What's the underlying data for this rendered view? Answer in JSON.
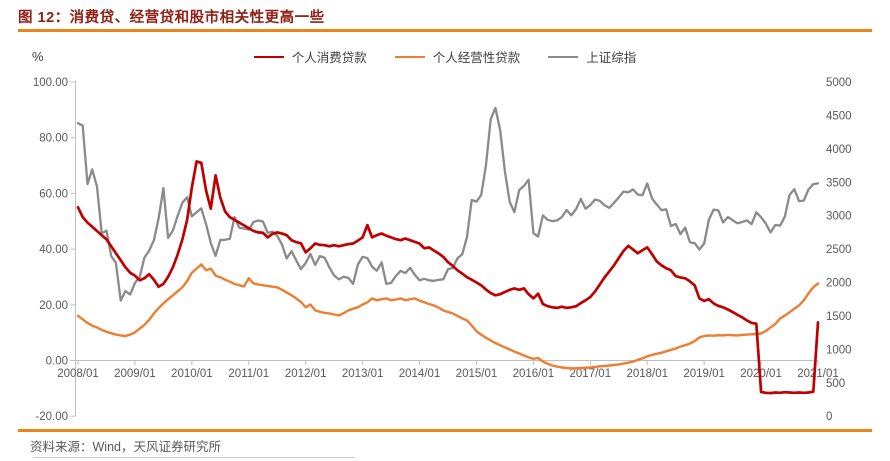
{
  "header": {
    "title": "图 12：消费贷、经营贷和股市相关性更高一些"
  },
  "footer": {
    "source": "资料来源：Wind，天风证券研究所"
  },
  "colors": {
    "title_text": "#8e2016",
    "accent_rule": "#e8861c",
    "axis_text": "#595959",
    "axis_line": "#bfbfbf",
    "legend_text": "#3d3d3d",
    "consumer_loans": "#c00000",
    "business_loans": "#ed7d31",
    "sse_index": "#8a8a8a"
  },
  "chart_data": {
    "type": "line",
    "title": "图 12：消费贷、经营贷和股市相关性更高一些",
    "unit_label": "%",
    "grid": "off",
    "legend_position": "top",
    "x_start": "2008/01",
    "x_end": "2021/01",
    "x_frequency": "monthly",
    "x_tick_labels": [
      "2008/01",
      "2009/01",
      "2010/01",
      "2011/01",
      "2012/01",
      "2013/01",
      "2014/01",
      "2015/01",
      "2016/01",
      "2017/01",
      "2018/01",
      "2019/01",
      "2020/01",
      "2021/01"
    ],
    "left_axis": {
      "label": "%",
      "min": -20,
      "max": 100,
      "step": 20,
      "tick_labels": [
        "100.00",
        "80.00",
        "60.00",
        "40.00",
        "20.00",
        "0.00",
        "-20.00"
      ]
    },
    "right_axis": {
      "min": 0,
      "max": 5000,
      "step": 500,
      "tick_labels": [
        "5000",
        "4500",
        "4000",
        "3500",
        "3000",
        "2500",
        "2000",
        "1500",
        "1000",
        "500",
        "0"
      ]
    },
    "series": [
      {
        "name": "个人消费贷款",
        "axis": "left",
        "color_key": "consumer_loans",
        "values": [
          55,
          51.5,
          49.5,
          48,
          46.5,
          45,
          43.5,
          41,
          38.5,
          36,
          33.5,
          31.5,
          30.5,
          28.8,
          29.5,
          31,
          29,
          26.5,
          27.5,
          30,
          33.5,
          38,
          43.5,
          50.5,
          62,
          71.5,
          71,
          61,
          54.5,
          66.5,
          58.5,
          53.5,
          51.5,
          50.5,
          49.5,
          48.5,
          47.5,
          46.5,
          46,
          45.8,
          44.2,
          45.5,
          46,
          45.6,
          45,
          43.2,
          42.5,
          42.1,
          38.8,
          40.3,
          42,
          41.5,
          41.4,
          41,
          41.4,
          41,
          41.4,
          41.8,
          42,
          43,
          44.2,
          48.6,
          44.2,
          45,
          45.6,
          44.8,
          44.2,
          43.6,
          43.2,
          43.8,
          43.2,
          42.6,
          42,
          40.3,
          40.6,
          39.5,
          38.5,
          37.2,
          35.3,
          34,
          32.4,
          31.2,
          29.9,
          29,
          28,
          27,
          25.5,
          24.2,
          23.4,
          23.8,
          24.6,
          25.4,
          25.9,
          25.4,
          25.9,
          23.8,
          22.3,
          24,
          20.3,
          19.5,
          19.1,
          18.9,
          19.3,
          18.9,
          19.1,
          19.5,
          20.6,
          21.6,
          22.8,
          24.8,
          27.3,
          29.8,
          32,
          34.2,
          36.8,
          39.3,
          41.2,
          39.9,
          38.5,
          39.6,
          40.6,
          38.2,
          35.6,
          34.2,
          33.1,
          32.4,
          30.3,
          29.8,
          29.5,
          28.4,
          27,
          22.3,
          21.4,
          22,
          20.5,
          19.6,
          19.1,
          18.3,
          17.4,
          16.4,
          15.5,
          14.4,
          13.5,
          13.2,
          -11.3,
          -11.6,
          -11.7,
          -11.5,
          -11.6,
          -11.4,
          -11.5,
          -11.6,
          -11.5,
          -11.6,
          -11.5,
          -11.2,
          13.7
        ]
      },
      {
        "name": "个人经营性贷款",
        "axis": "left",
        "color_key": "business_loans",
        "values": [
          16,
          14.8,
          13.5,
          12.5,
          11.9,
          11,
          10.3,
          9.8,
          9.3,
          9,
          8.8,
          9.3,
          10.1,
          11.5,
          12.8,
          14.6,
          16.9,
          18.8,
          20.5,
          22,
          23.4,
          24.8,
          26.3,
          28.5,
          31.5,
          33,
          34.5,
          32.4,
          33,
          30.5,
          29.9,
          29,
          28.3,
          27.5,
          27,
          26.6,
          29.5,
          27.7,
          27.3,
          27,
          26.8,
          26.5,
          26.3,
          25.4,
          24.4,
          23.4,
          22.3,
          21,
          19.1,
          20.1,
          18,
          17.5,
          17.1,
          16.9,
          16.5,
          16.2,
          17,
          18,
          18.6,
          19.1,
          20.1,
          20.9,
          22.3,
          21.6,
          22,
          22.3,
          21.6,
          21.9,
          22.3,
          21.6,
          22,
          22.3,
          21.5,
          20.9,
          20.3,
          19.8,
          19,
          18,
          17.4,
          16.9,
          16,
          15.1,
          14.4,
          12.6,
          10.5,
          9.3,
          8.2,
          7.2,
          6.3,
          5.5,
          4.7,
          4,
          3.2,
          2.5,
          1.8,
          1.1,
          0.6,
          0.9,
          -0.4,
          -1.2,
          -1.8,
          -2.2,
          -2.5,
          -2.7,
          -2.8,
          -2.8,
          -2.7,
          -2.6,
          -2.5,
          -2.3,
          -2.1,
          -2,
          -1.8,
          -1.6,
          -1.4,
          -1.1,
          -0.8,
          -0.4,
          0.2,
          0.8,
          1.5,
          2,
          2.4,
          2.8,
          3.3,
          3.8,
          4.3,
          5,
          5.5,
          6.1,
          7,
          8.3,
          8.8,
          9,
          8.9,
          9.1,
          9,
          9.2,
          9.1,
          9,
          9.2,
          9.3,
          9.4,
          9.5,
          9.7,
          10.6,
          11.9,
          13.1,
          15.1,
          16.1,
          17.3,
          18.6,
          19.8,
          21.6,
          24.1,
          26.3,
          27.7
        ]
      },
      {
        "name": "上证综指",
        "axis": "right",
        "color_key": "sse_index",
        "values": [
          4383,
          4348,
          3472,
          3693,
          3433,
          2736,
          2776,
          2397,
          2294,
          1729,
          1871,
          1821,
          1991,
          2083,
          2373,
          2478,
          2633,
          2959,
          3412,
          2668,
          2779,
          2995,
          3195,
          3277,
          2989,
          3052,
          3109,
          2871,
          2592,
          2398,
          2638,
          2639,
          2655,
          2979,
          2820,
          2808,
          2790,
          2905,
          2928,
          2911,
          2743,
          2762,
          2701,
          2567,
          2359,
          2468,
          2333,
          2199,
          2292,
          2428,
          2262,
          2396,
          2372,
          2225,
          2103,
          2047,
          2086,
          2068,
          1980,
          2269,
          2385,
          2365,
          2236,
          2177,
          2301,
          1979,
          1994,
          2098,
          2175,
          2141,
          2220,
          2116,
          2033,
          2056,
          2033,
          2026,
          2039,
          2048,
          2201,
          2217,
          2364,
          2420,
          2683,
          3235,
          3210,
          3310,
          3748,
          4442,
          4612,
          4277,
          3664,
          3206,
          3053,
          3383,
          3445,
          3539,
          2738,
          2688,
          3004,
          2938,
          2917,
          2930,
          2979,
          3085,
          3005,
          3100,
          3250,
          3104,
          3159,
          3242,
          3223,
          3155,
          3117,
          3192,
          3273,
          3361,
          3349,
          3393,
          3317,
          3307,
          3481,
          3259,
          3169,
          3082,
          3095,
          2847,
          2876,
          2725,
          2821,
          2603,
          2588,
          2494,
          2585,
          2941,
          3091,
          3078,
          2899,
          2979,
          2933,
          2886,
          2905,
          2929,
          2872,
          3050,
          2977,
          2880,
          2750,
          2860,
          2852,
          2985,
          3310,
          3396,
          3218,
          3225,
          3392,
          3473,
          3483
        ]
      }
    ]
  }
}
